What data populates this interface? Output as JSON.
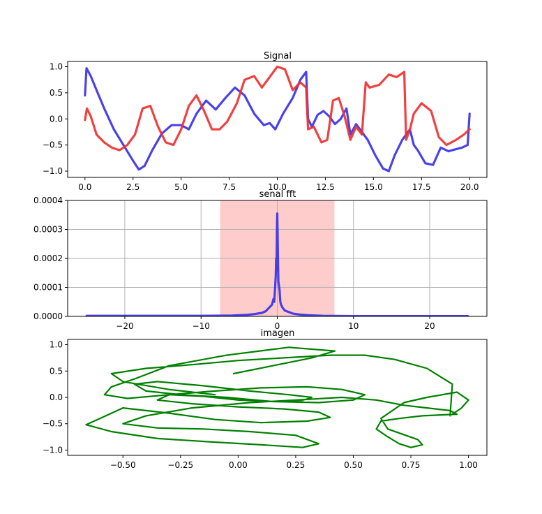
{
  "chart_data": [
    {
      "type": "line",
      "title": "Signal",
      "xlim": [
        -0.9,
        20.9
      ],
      "ylim": [
        -1.12,
        1.1
      ],
      "xticks": [
        0.0,
        2.5,
        5.0,
        7.5,
        10.0,
        12.5,
        15.0,
        17.5,
        20.0
      ],
      "xtick_labels": [
        "0.0",
        "2.5",
        "5.0",
        "7.5",
        "10.0",
        "12.5",
        "15.0",
        "17.5",
        "20.0"
      ],
      "yticks": [
        1.0,
        0.5,
        0.0,
        -0.5,
        -1.0
      ],
      "ytick_labels": [
        "1.0",
        "0.5",
        "0.0",
        "−0.5",
        "−1.0"
      ],
      "grid": false,
      "series": [
        {
          "color": "#3a32e8",
          "x": [
            0,
            0.08,
            0.3,
            0.6,
            1.0,
            1.5,
            2.0,
            2.5,
            2.8,
            3.1,
            3.5,
            4.0,
            4.5,
            5.0,
            5.4,
            5.8,
            6.3,
            6.8,
            7.3,
            7.8,
            8.3,
            8.8,
            9.3,
            9.6,
            9.9,
            10.3,
            10.8,
            11.2,
            11.5,
            11.6,
            11.8,
            12.1,
            12.4,
            12.7,
            13.0,
            13.3,
            13.6,
            13.8,
            14.1,
            14.4,
            14.7,
            15.1,
            15.5,
            15.8,
            16.1,
            16.5,
            16.9,
            17.1,
            17.3,
            17.7,
            18.1,
            18.5,
            18.9,
            19.3,
            19.6,
            19.9,
            20.0
          ],
          "y": [
            0.45,
            0.97,
            0.82,
            0.55,
            0.2,
            -0.2,
            -0.5,
            -0.8,
            -0.97,
            -0.9,
            -0.6,
            -0.28,
            -0.12,
            -0.12,
            -0.2,
            0.1,
            0.35,
            0.18,
            0.4,
            0.6,
            0.45,
            0.1,
            -0.12,
            -0.08,
            -0.2,
            0.1,
            0.4,
            0.75,
            0.9,
            0.0,
            -0.15,
            0.08,
            0.15,
            0.05,
            -0.1,
            0.0,
            0.2,
            -0.3,
            -0.1,
            -0.25,
            -0.4,
            -0.7,
            -0.95,
            -1.0,
            -0.7,
            -0.4,
            -0.2,
            -0.5,
            -0.6,
            -0.85,
            -0.88,
            -0.55,
            -0.62,
            -0.58,
            -0.55,
            -0.5,
            0.1
          ]
        },
        {
          "color": "#f03030",
          "x": [
            0,
            0.1,
            0.3,
            0.6,
            1.0,
            1.4,
            1.8,
            2.2,
            2.6,
            3.0,
            3.4,
            3.8,
            4.2,
            4.6,
            5.0,
            5.4,
            5.8,
            6.2,
            6.6,
            7.0,
            7.4,
            7.9,
            8.3,
            8.8,
            9.2,
            9.6,
            10.0,
            10.4,
            10.8,
            11.2,
            11.5,
            11.6,
            11.9,
            12.3,
            12.6,
            12.9,
            13.2,
            13.5,
            13.8,
            14.1,
            14.4,
            14.6,
            14.8,
            15.3,
            15.8,
            16.2,
            16.6,
            16.7,
            16.9,
            17.1,
            17.5,
            18.0,
            18.4,
            18.8,
            19.3,
            19.7,
            20.0
          ],
          "y": [
            -0.02,
            0.2,
            0.05,
            -0.3,
            -0.45,
            -0.55,
            -0.6,
            -0.5,
            -0.3,
            0.2,
            0.25,
            -0.15,
            -0.45,
            -0.5,
            -0.2,
            0.25,
            0.45,
            0.15,
            -0.2,
            -0.2,
            -0.05,
            0.3,
            0.75,
            0.82,
            0.6,
            0.8,
            1.0,
            0.95,
            0.55,
            0.7,
            0.6,
            -0.2,
            -0.15,
            -0.45,
            -0.4,
            0.35,
            0.4,
            0.05,
            -0.4,
            -0.15,
            -0.3,
            0.7,
            0.6,
            0.65,
            0.85,
            0.8,
            0.9,
            -0.4,
            -0.2,
            0.1,
            0.3,
            0.15,
            -0.35,
            -0.5,
            -0.4,
            -0.3,
            -0.2
          ]
        }
      ]
    },
    {
      "type": "line",
      "title": "senal fft",
      "xlim": [
        -27.5,
        27.5
      ],
      "ylim": [
        0,
        0.0004
      ],
      "xticks": [
        -20,
        -10,
        0,
        10,
        20
      ],
      "xtick_labels": [
        "−20",
        "−10",
        "0",
        "10",
        "20"
      ],
      "yticks": [
        0.0004,
        0.0003,
        0.0002,
        0.0001,
        0.0
      ],
      "ytick_labels": [
        "0.0004",
        "0.0003",
        "0.0002",
        "0.0001",
        "0.0000"
      ],
      "grid": true,
      "shaded_span": {
        "x0": -7.5,
        "x1": 7.5,
        "color": "#ffcccc"
      },
      "series": [
        {
          "color": "#3a32e8",
          "x": [
            -25,
            -10,
            -6,
            -4,
            -3,
            -2,
            -1.5,
            -1,
            -0.7,
            -0.5,
            -0.4,
            -0.3,
            -0.2,
            -0.15,
            -0.1,
            -0.05,
            0,
            0.05,
            0.1,
            0.15,
            0.2,
            0.3,
            0.4,
            0.5,
            0.7,
            1,
            1.5,
            2,
            3,
            4,
            6,
            10,
            25
          ],
          "y": [
            2e-06,
            2e-06,
            3e-06,
            5e-06,
            8e-06,
            1.2e-05,
            1.8e-05,
            3.2e-05,
            4e-05,
            6e-05,
            5e-05,
            9e-05,
            0.00014,
            0.0002,
            0.00016,
            0.0003,
            0.000355,
            0.00028,
            0.00018,
            0.00012,
            0.00011,
            9e-05,
            5e-05,
            4e-05,
            3e-05,
            2e-05,
            1.5e-05,
            1e-05,
            6e-06,
            4e-06,
            2e-06,
            1e-06,
            1e-06
          ]
        }
      ]
    },
    {
      "type": "line",
      "title": "imagen",
      "xlim": [
        -0.74,
        1.08
      ],
      "ylim": [
        -1.1,
        1.1
      ],
      "xticks": [
        -0.5,
        -0.25,
        0.0,
        0.25,
        0.5,
        0.75,
        1.0
      ],
      "xtick_labels": [
        "−0.50",
        "−0.25",
        "0.00",
        "0.25",
        "0.50",
        "0.75",
        "1.00"
      ],
      "yticks": [
        1.0,
        0.5,
        0.0,
        -0.5,
        -1.0
      ],
      "ytick_labels": [
        "1.0",
        "0.5",
        "0.0",
        "−0.5",
        "−1.0"
      ],
      "grid": false,
      "series": [
        {
          "color": "#008000",
          "x": [
            -0.02,
            0.15,
            0.32,
            0.42,
            0.22,
            -0.05,
            -0.3,
            -0.45,
            -0.55,
            -0.58,
            -0.48,
            -0.3,
            -0.1,
            0.1,
            0.3,
            0.45,
            0.55,
            0.5,
            0.35,
            0.15,
            -0.05,
            -0.25,
            -0.4,
            -0.45,
            -0.35,
            -0.15,
            0.05,
            0.22,
            0.32,
            0.28,
            0.15,
            0.0,
            -0.15,
            -0.3,
            -0.35,
            -0.2,
            0.0,
            0.2,
            0.35,
            0.4,
            0.3,
            0.1,
            -0.1,
            -0.3,
            -0.5,
            -0.6,
            -0.66,
            -0.55,
            -0.35,
            -0.1,
            0.1,
            0.28,
            0.35,
            0.25,
            0.05,
            -0.15,
            -0.35,
            -0.5,
            -0.4,
            -0.2,
            0.05,
            0.25,
            0.45,
            0.6,
            0.72,
            0.82,
            0.92,
            0.95,
            0.8,
            0.7,
            0.62,
            0.6,
            0.65,
            0.7,
            0.75,
            0.8,
            0.78,
            0.65,
            0.62,
            0.72,
            0.82,
            0.95,
            1.0,
            0.97,
            0.92,
            0.93,
            0.82,
            0.68,
            0.55,
            0.4,
            0.2,
            0.0,
            -0.2,
            -0.4,
            -0.55,
            -0.5,
            -0.3,
            -0.1
          ],
          "y": [
            0.45,
            0.6,
            0.75,
            0.88,
            0.95,
            0.8,
            0.6,
            0.35,
            0.2,
            0.05,
            -0.02,
            0.05,
            0.12,
            0.18,
            0.2,
            0.15,
            0.05,
            -0.05,
            -0.1,
            -0.08,
            0.0,
            0.05,
            0.12,
            0.25,
            0.3,
            0.22,
            0.12,
            0.05,
            0.0,
            -0.06,
            -0.08,
            -0.05,
            0.02,
            0.05,
            -0.05,
            -0.12,
            -0.18,
            -0.22,
            -0.28,
            -0.38,
            -0.45,
            -0.48,
            -0.42,
            -0.3,
            -0.2,
            -0.4,
            -0.52,
            -0.65,
            -0.78,
            -0.85,
            -0.9,
            -0.95,
            -0.88,
            -0.72,
            -0.65,
            -0.6,
            -0.58,
            -0.5,
            -0.35,
            -0.2,
            -0.1,
            -0.05,
            0.0,
            -0.05,
            -0.15,
            -0.2,
            -0.25,
            -0.32,
            -0.35,
            -0.4,
            -0.45,
            -0.6,
            -0.75,
            -0.88,
            -0.95,
            -0.9,
            -0.8,
            -0.6,
            -0.4,
            -0.1,
            0.0,
            0.1,
            -0.05,
            -0.2,
            -0.35,
            0.25,
            0.55,
            0.72,
            0.8,
            0.8,
            0.75,
            0.7,
            0.62,
            0.55,
            0.45,
            0.3,
            0.15,
            0.05
          ]
        }
      ]
    }
  ]
}
